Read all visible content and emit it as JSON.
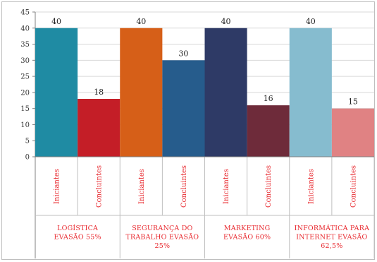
{
  "chart_data": {
    "type": "bar",
    "ylim": [
      0,
      45
    ],
    "yticks": [
      "0",
      "5",
      "10",
      "15",
      "20",
      "25",
      "30",
      "35",
      "40",
      "45"
    ],
    "grid": true,
    "legend": "none",
    "groups": [
      {
        "label_lines": [
          "LOGÍSTICA",
          "EVASÃO 55%"
        ],
        "bars": [
          {
            "category": "Iniciantes",
            "value": 40,
            "label": "40",
            "color": "#1f8ba3"
          },
          {
            "category": "Concluintes",
            "value": 18,
            "label": "18",
            "color": "#c41e27"
          }
        ]
      },
      {
        "label_lines": [
          "SEGURANÇA DO",
          "TRABALHO EVASÃO",
          "25%"
        ],
        "bars": [
          {
            "category": "Iniciantes",
            "value": 40,
            "label": "40",
            "color": "#d65f18"
          },
          {
            "category": "Concluintes",
            "value": 30,
            "label": "30",
            "color": "#265c8c"
          }
        ]
      },
      {
        "label_lines": [
          "MARKETING",
          "EVASÃO 60%"
        ],
        "bars": [
          {
            "category": "Iniciantes",
            "value": 40,
            "label": "40",
            "color": "#2e3a66"
          },
          {
            "category": "Concluintes",
            "value": 16,
            "label": "16",
            "color": "#6e2b3a"
          }
        ]
      },
      {
        "label_lines": [
          "INFORMÁTICA PARA",
          "INTERNET EVASÃO",
          "62,5%"
        ],
        "bars": [
          {
            "category": "Iniciantes",
            "value": 40,
            "label": "40",
            "color": "#86bccf"
          },
          {
            "category": "Concluintes",
            "value": 15,
            "label": "15",
            "color": "#e08283"
          }
        ]
      }
    ]
  }
}
